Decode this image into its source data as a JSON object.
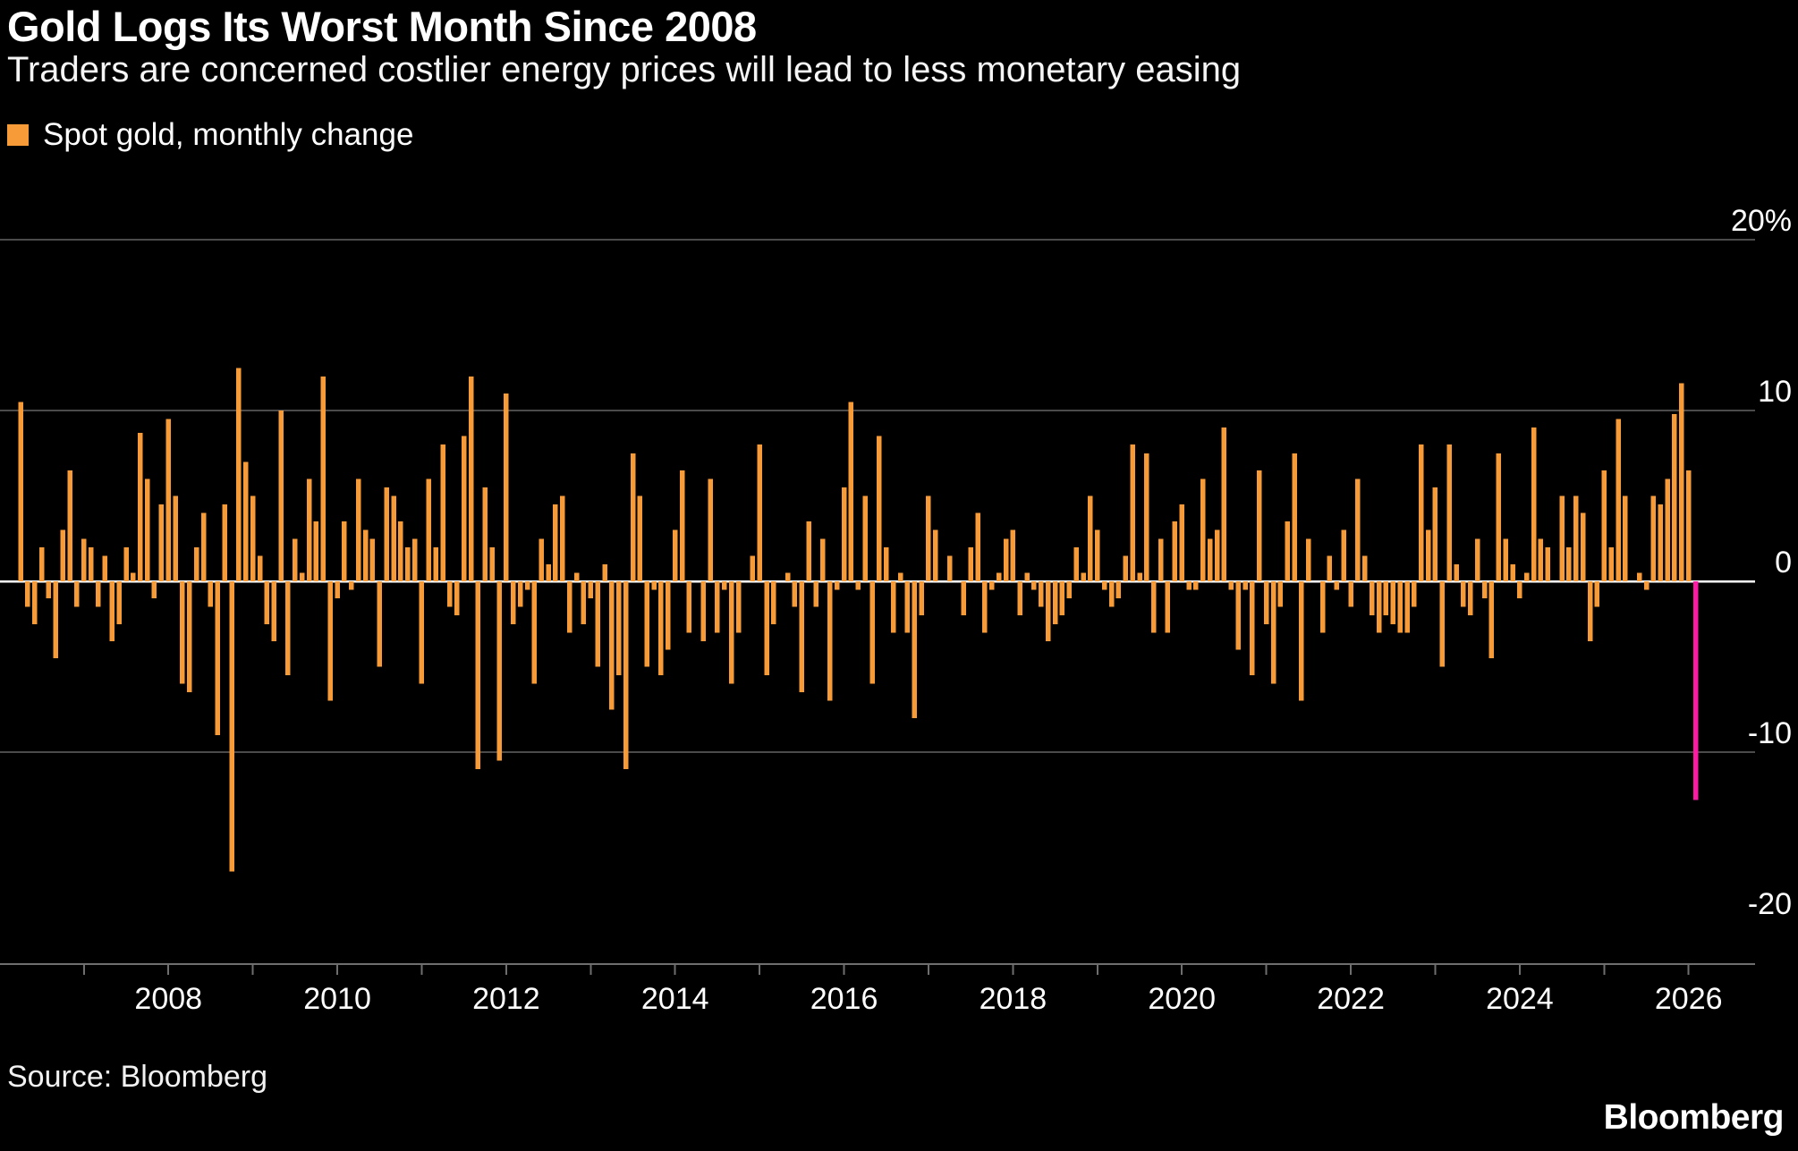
{
  "header": {
    "title": "Gold Logs Its Worst Month Since 2008",
    "subtitle": "Traders are concerned costlier energy prices will lead to less monetary easing"
  },
  "legend": {
    "label": "Spot gold, monthly change",
    "color": "#f79a38"
  },
  "footer": {
    "source": "Source: Bloomberg",
    "brand": "Bloomberg"
  },
  "chart_data": {
    "type": "bar",
    "title": "Gold Logs Its Worst Month Since 2008",
    "series_name": "Spot gold, monthly change",
    "unit": "%",
    "frequency": "monthly",
    "start_month": "2006-04",
    "end_month": "2026-02",
    "bar_color": "#f79a38",
    "highlight": {
      "index": 238,
      "color": "#ff1aa3",
      "note": "Worst month since 2008"
    },
    "values": [
      10.5,
      -1.5,
      -2.5,
      2,
      -1,
      -4.5,
      3,
      6.5,
      -1.5,
      2.5,
      2,
      -1.5,
      1.5,
      -3.5,
      -2.5,
      2,
      0.5,
      8.7,
      6,
      -1,
      4.5,
      9.5,
      5,
      -6,
      -6.5,
      2,
      4,
      -1.5,
      -9,
      4.5,
      -17,
      12.5,
      7,
      5,
      1.5,
      -2.5,
      -3.5,
      10,
      -5.5,
      2.5,
      0.5,
      6,
      3.5,
      12,
      -7,
      -1,
      3.5,
      -0.5,
      6,
      3,
      2.5,
      -5,
      5.5,
      5,
      3.5,
      2,
      2.5,
      -6,
      6,
      2,
      8,
      -1.5,
      -2,
      8.5,
      12,
      -11,
      5.5,
      2,
      -10.5,
      11,
      -2.5,
      -1.5,
      -0.5,
      -6,
      2.5,
      1,
      4.5,
      5,
      -3,
      0.5,
      -2.5,
      -1,
      -5,
      1,
      -7.5,
      -5.5,
      -11,
      7.5,
      5,
      -5,
      -0.5,
      -5.5,
      -4,
      3,
      6.5,
      -3,
      0,
      -3.5,
      6,
      -3,
      -0.5,
      -6,
      -3,
      0,
      1.5,
      8,
      -5.5,
      -2.5,
      0,
      0.5,
      -1.5,
      -6.5,
      3.5,
      -1.5,
      2.5,
      -7,
      -0.5,
      5.5,
      10.5,
      -0.5,
      5,
      -6,
      8.5,
      2,
      -3,
      0.5,
      -3,
      -8,
      -2,
      5,
      3,
      0,
      1.5,
      0,
      -2,
      2,
      4,
      -3,
      -0.5,
      0.5,
      2.5,
      3,
      -2,
      0.5,
      -0.5,
      -1.5,
      -3.5,
      -2.5,
      -2,
      -1,
      2,
      0.5,
      5,
      3,
      -0.5,
      -1.5,
      -1,
      1.5,
      8,
      0.5,
      7.5,
      -3,
      2.5,
      -3,
      3.5,
      4.5,
      -0.5,
      -0.5,
      6,
      2.5,
      3,
      9,
      -0.5,
      -4,
      -0.5,
      -5.5,
      6.5,
      -2.5,
      -6,
      -1.5,
      3.5,
      7.5,
      -7,
      2.5,
      0,
      -3,
      1.5,
      -0.5,
      3,
      -1.5,
      6,
      1.5,
      -2,
      -3,
      -2,
      -2.5,
      -3,
      -3,
      -1.5,
      8,
      3,
      5.5,
      -5,
      8,
      1,
      -1.5,
      -2,
      2.5,
      -1,
      -4.5,
      7.5,
      2.5,
      1,
      -1,
      0.5,
      9,
      2.5,
      2,
      0,
      5,
      2,
      5,
      4,
      -3.5,
      -1.5,
      6.5,
      2,
      9.5,
      5,
      0,
      0.5,
      -0.5,
      5,
      4.5,
      6,
      9.8,
      11.6,
      6.5,
      -12.8
    ],
    "ylim": [
      -20,
      20
    ],
    "yticks": [
      20,
      10,
      0,
      -10,
      -20
    ],
    "ytick_labels": [
      "20%",
      "10",
      "0",
      "-10",
      "-20"
    ],
    "grid_values": [
      20,
      10,
      -10
    ],
    "zero_line": true,
    "xticks": [
      2008,
      2010,
      2012,
      2014,
      2016,
      2018,
      2020,
      2022,
      2024,
      2026
    ],
    "legend_position": "top-left",
    "axis_label_position": "right",
    "grid_color": "#4b4b4b",
    "zero_line_color": "#ffffff",
    "axis_color": "#6e6e6e",
    "label_color": "#ffffff"
  }
}
